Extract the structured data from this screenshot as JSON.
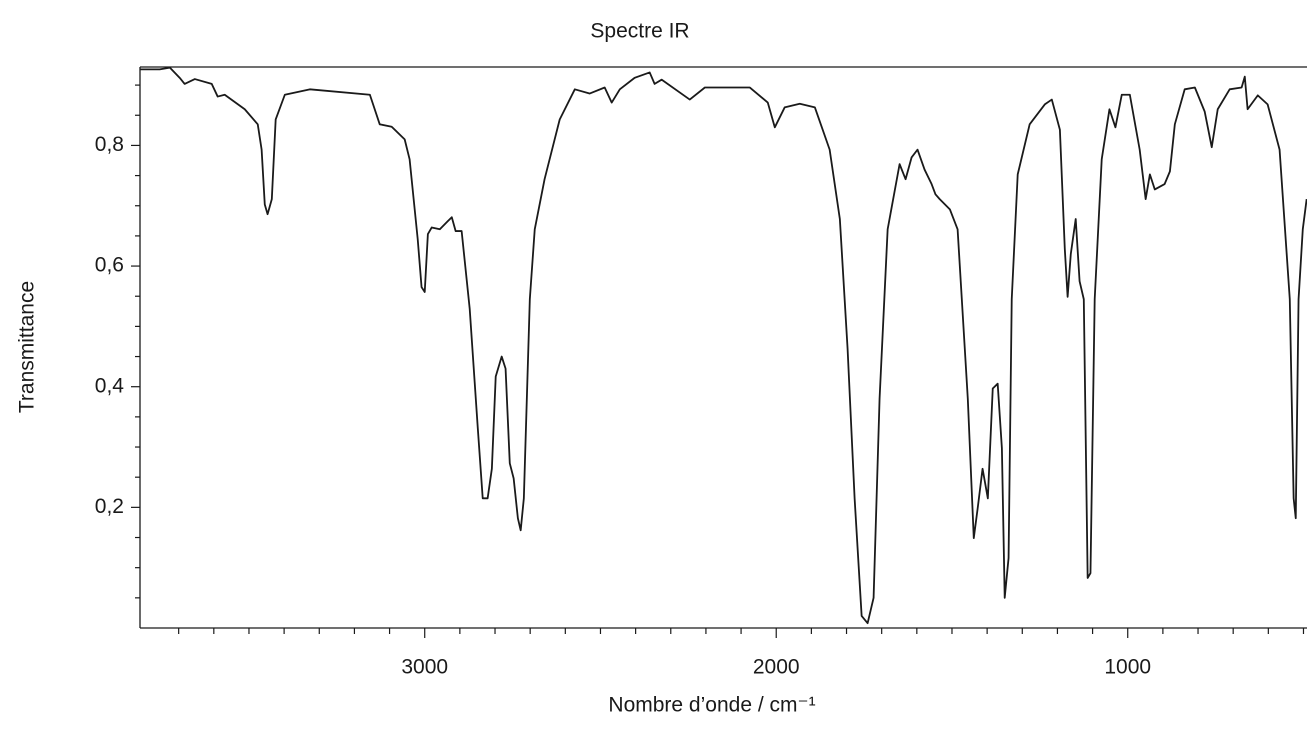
{
  "chart_data": {
    "type": "line",
    "title": "Spectre IR",
    "x_label": "Nombre d’onde / cm⁻¹",
    "y_label": "Transmittance",
    "color": "#1a1a1a",
    "xlim": [
      3810,
      490
    ],
    "ylim": [
      0,
      0.93
    ],
    "xticks": [
      3000,
      2000,
      1000
    ],
    "x_minor_ticks": [
      3700,
      3600,
      3500,
      3400,
      3300,
      3200,
      3100,
      2900,
      2800,
      2700,
      2600,
      2500,
      2400,
      2300,
      2200,
      2100,
      1900,
      1800,
      1700,
      1600,
      1500,
      1400,
      1300,
      1200,
      1100,
      900,
      800,
      700,
      600,
      500
    ],
    "yticks": [
      {
        "value": 0.2,
        "label": "0,2"
      },
      {
        "value": 0.4,
        "label": "0,4"
      },
      {
        "value": 0.6,
        "label": "0,6"
      },
      {
        "value": 0.8,
        "label": "0,8"
      }
    ],
    "y_minor_ticks": [
      0.05,
      0.1,
      0.15,
      0.25,
      0.3,
      0.35,
      0.45,
      0.5,
      0.55,
      0.65,
      0.7,
      0.75,
      0.85,
      0.9
    ],
    "x": [
      3811,
      3754,
      3725,
      3697,
      3683,
      3654,
      3606,
      3589,
      3569,
      3512,
      3475,
      3464,
      3455,
      3447,
      3435,
      3424,
      3398,
      3327,
      3156,
      3128,
      3094,
      3057,
      3043,
      3020,
      3009,
      3000,
      2991,
      2980,
      2957,
      2935,
      2923,
      2912,
      2895,
      2872,
      2849,
      2835,
      2821,
      2809,
      2798,
      2781,
      2770,
      2758,
      2747,
      2735,
      2727,
      2718,
      2701,
      2687,
      2659,
      2616,
      2573,
      2531,
      2488,
      2468,
      2445,
      2403,
      2360,
      2346,
      2326,
      2246,
      2203,
      2075,
      2024,
      2004,
      1976,
      1933,
      1890,
      1848,
      1819,
      1797,
      1777,
      1757,
      1740,
      1723,
      1706,
      1683,
      1649,
      1632,
      1615,
      1598,
      1578,
      1558,
      1547,
      1535,
      1506,
      1484,
      1455,
      1438,
      1427,
      1413,
      1398,
      1384,
      1370,
      1358,
      1350,
      1339,
      1330,
      1313,
      1279,
      1236,
      1216,
      1193,
      1179,
      1171,
      1162,
      1148,
      1137,
      1125,
      1114,
      1106,
      1094,
      1074,
      1052,
      1035,
      1017,
      994,
      966,
      949,
      937,
      923,
      895,
      880,
      866,
      838,
      809,
      781,
      761,
      744,
      710,
      676,
      667,
      659,
      630,
      602,
      568,
      539,
      528,
      522,
      514,
      502,
      491
    ],
    "values": [
      0.926,
      0.926,
      0.929,
      0.912,
      0.902,
      0.91,
      0.902,
      0.881,
      0.884,
      0.86,
      0.835,
      0.793,
      0.702,
      0.686,
      0.711,
      0.843,
      0.884,
      0.893,
      0.884,
      0.835,
      0.831,
      0.81,
      0.777,
      0.645,
      0.565,
      0.557,
      0.653,
      0.664,
      0.661,
      0.674,
      0.681,
      0.658,
      0.658,
      0.529,
      0.331,
      0.215,
      0.215,
      0.264,
      0.417,
      0.45,
      0.43,
      0.273,
      0.248,
      0.182,
      0.162,
      0.215,
      0.545,
      0.661,
      0.744,
      0.843,
      0.893,
      0.886,
      0.896,
      0.871,
      0.893,
      0.912,
      0.921,
      0.902,
      0.909,
      0.876,
      0.896,
      0.896,
      0.871,
      0.83,
      0.863,
      0.869,
      0.863,
      0.793,
      0.678,
      0.463,
      0.215,
      0.02,
      0.008,
      0.05,
      0.38,
      0.661,
      0.769,
      0.744,
      0.78,
      0.793,
      0.76,
      0.736,
      0.719,
      0.711,
      0.694,
      0.661,
      0.38,
      0.149,
      0.198,
      0.264,
      0.215,
      0.397,
      0.405,
      0.298,
      0.05,
      0.116,
      0.545,
      0.752,
      0.835,
      0.868,
      0.876,
      0.826,
      0.628,
      0.549,
      0.62,
      0.678,
      0.575,
      0.545,
      0.083,
      0.091,
      0.545,
      0.777,
      0.86,
      0.83,
      0.884,
      0.884,
      0.793,
      0.711,
      0.752,
      0.727,
      0.736,
      0.757,
      0.835,
      0.893,
      0.896,
      0.856,
      0.797,
      0.86,
      0.893,
      0.896,
      0.914,
      0.86,
      0.883,
      0.868,
      0.793,
      0.545,
      0.215,
      0.182,
      0.545,
      0.661,
      0.711
    ]
  }
}
